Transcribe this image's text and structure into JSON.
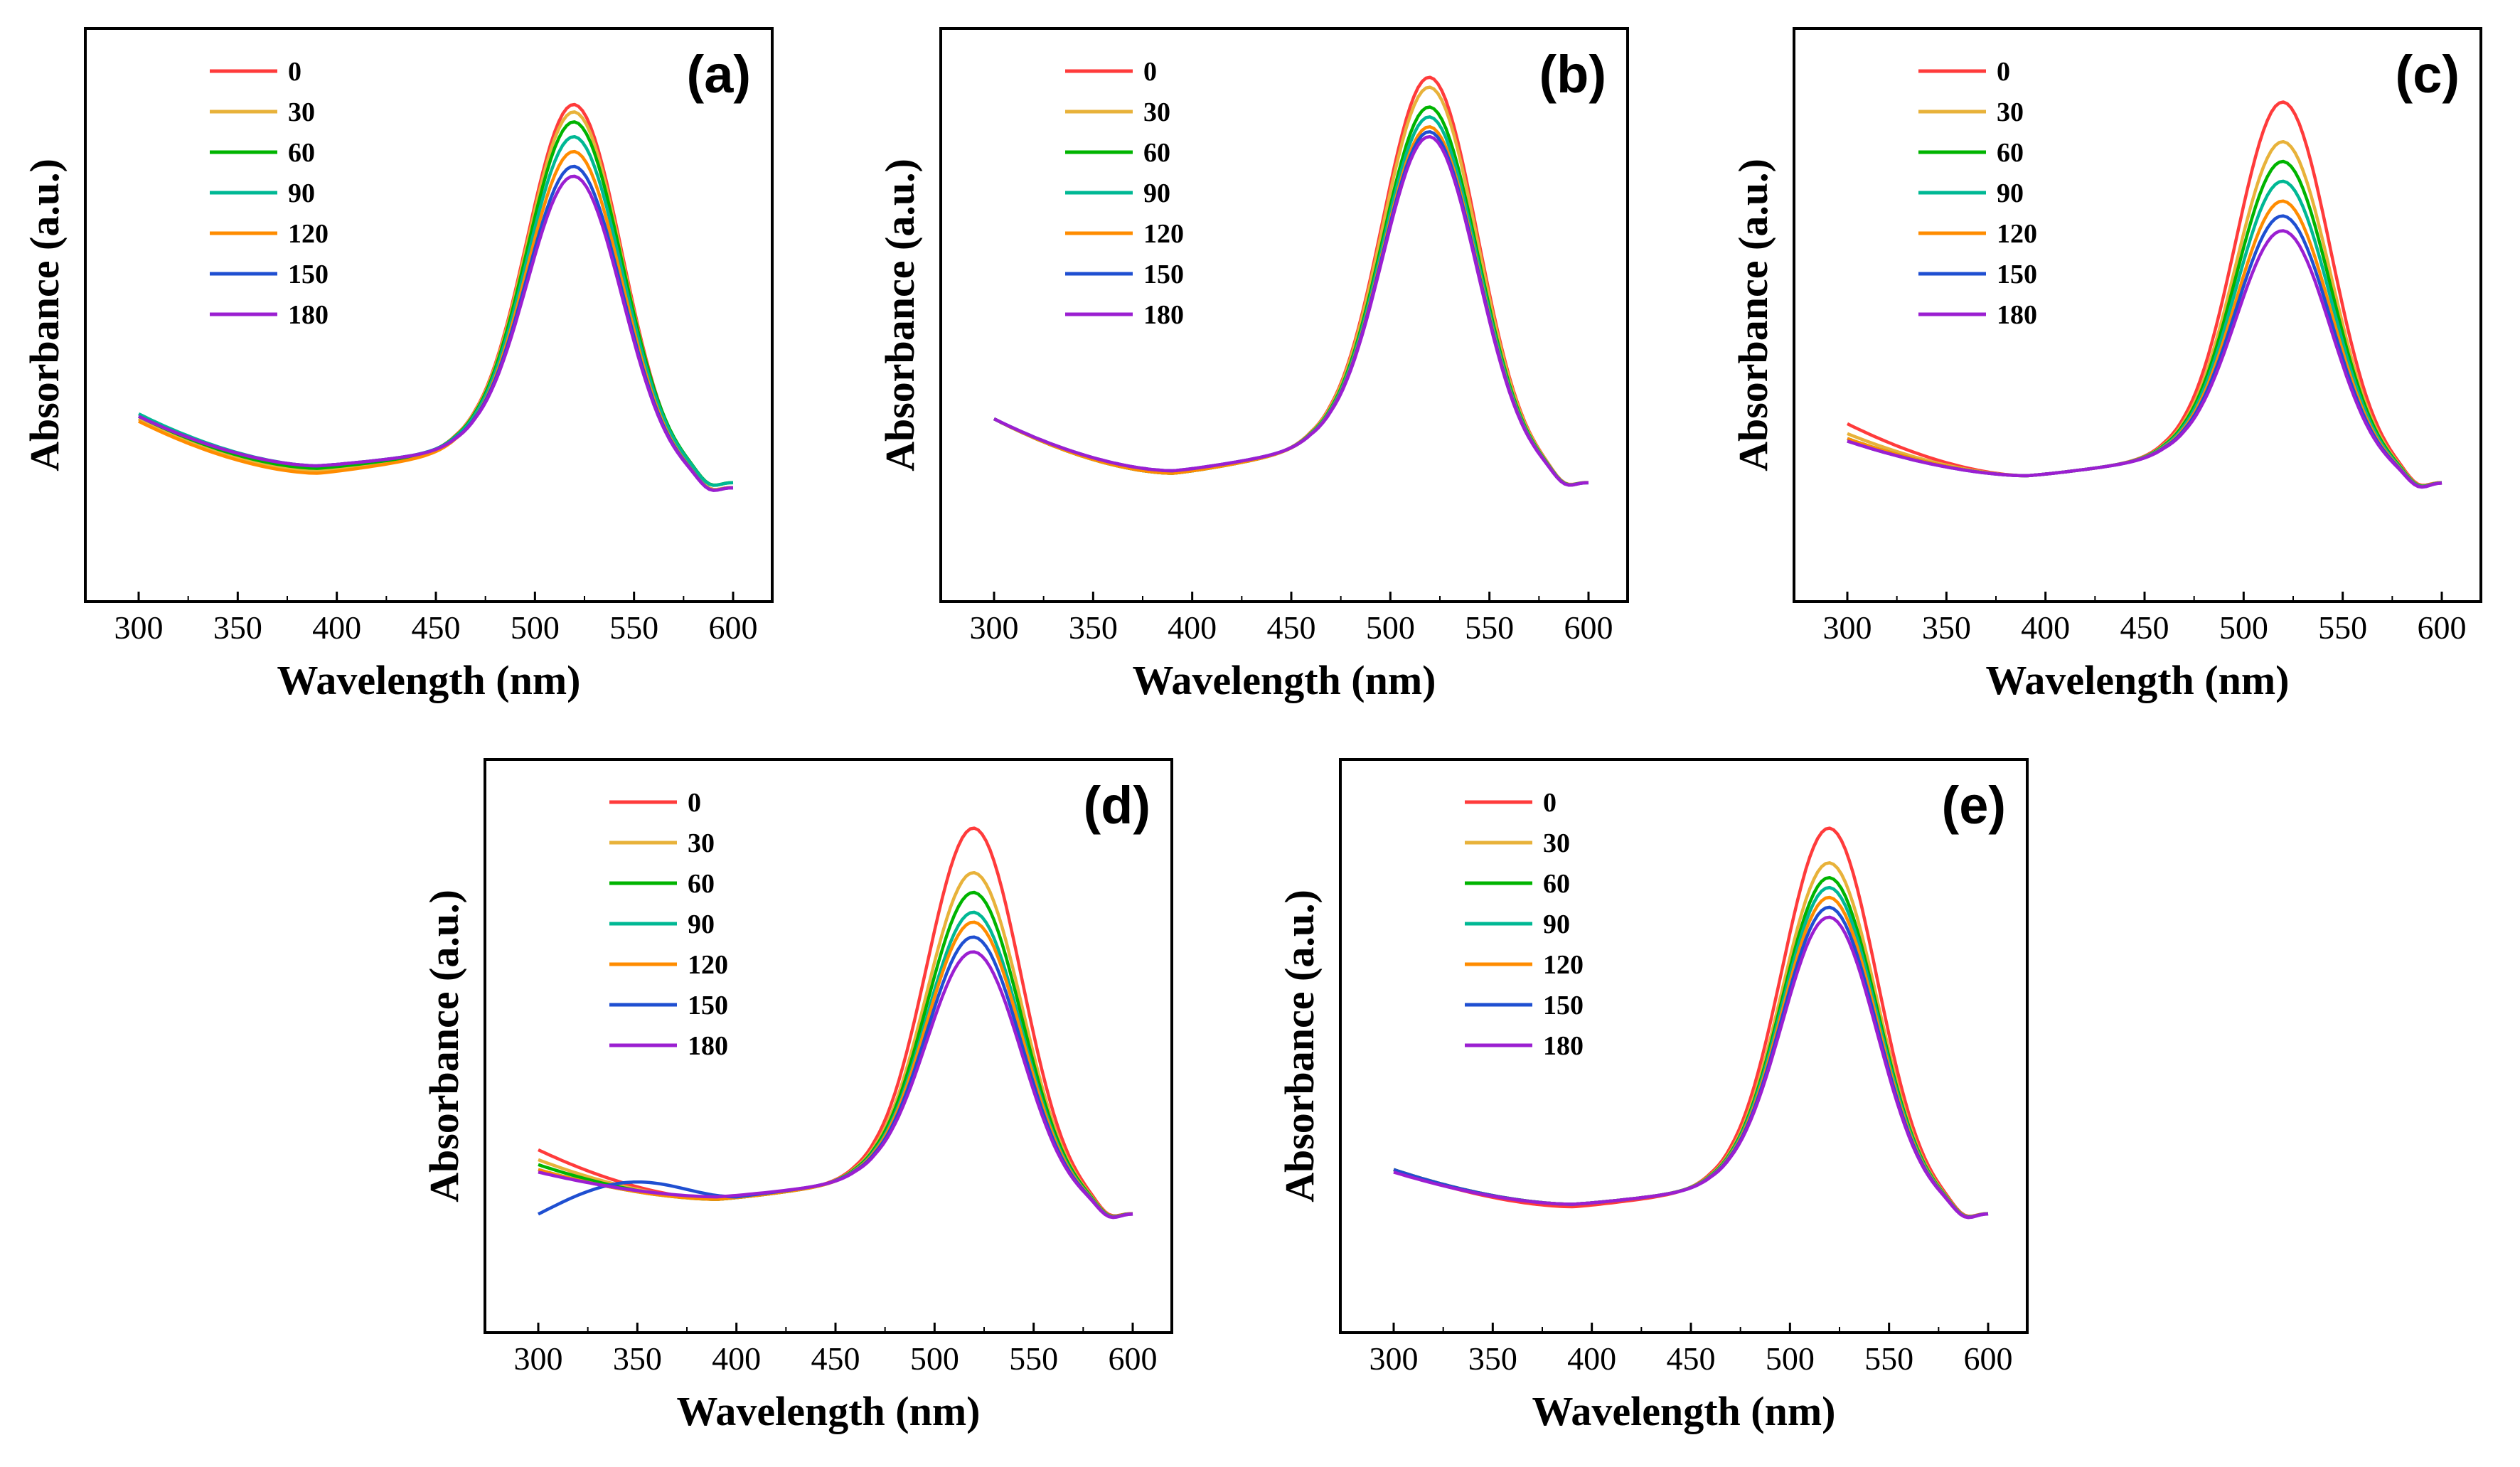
{
  "figure": {
    "legend_title": "",
    "colors": {
      "0": "#ff3b3b",
      "30": "#e8b23a",
      "60": "#00b400",
      "90": "#00b894",
      "120": "#ff8c00",
      "150": "#1f4fd1",
      "180": "#9b1fd1"
    }
  },
  "chart_data": [
    {
      "type": "line",
      "panel": "(a)",
      "xlabel": "Wavelength (nm)",
      "ylabel": "Absorbance (a.u.)",
      "xlim": [
        300,
        600
      ],
      "ylim": [
        0,
        1
      ],
      "xticks": [
        300,
        350,
        400,
        450,
        500,
        550,
        600
      ],
      "grid": false,
      "legend": "top-left",
      "peak_x": 520,
      "series": [
        {
          "name": "0",
          "start": 0.24,
          "min": 0.135,
          "min_x": 390,
          "shoulder": 0.175,
          "peak": 0.875,
          "end": 0.1
        },
        {
          "name": "30",
          "start": 0.24,
          "min": 0.135,
          "min_x": 390,
          "shoulder": 0.175,
          "peak": 0.86,
          "end": 0.1
        },
        {
          "name": "60",
          "start": 0.245,
          "min": 0.14,
          "min_x": 390,
          "shoulder": 0.175,
          "peak": 0.84,
          "end": 0.11
        },
        {
          "name": "90",
          "start": 0.25,
          "min": 0.145,
          "min_x": 390,
          "shoulder": 0.175,
          "peak": 0.81,
          "end": 0.11
        },
        {
          "name": "120",
          "start": 0.235,
          "min": 0.13,
          "min_x": 390,
          "shoulder": 0.172,
          "peak": 0.78,
          "end": 0.1
        },
        {
          "name": "150",
          "start": 0.245,
          "min": 0.145,
          "min_x": 390,
          "shoulder": 0.175,
          "peak": 0.75,
          "end": 0.1
        },
        {
          "name": "180",
          "start": 0.245,
          "min": 0.145,
          "min_x": 390,
          "shoulder": 0.175,
          "peak": 0.73,
          "end": 0.1
        }
      ]
    },
    {
      "type": "line",
      "panel": "(b)",
      "xlabel": "Wavelength (nm)",
      "ylabel": "Absorbance (a.u.)",
      "xlim": [
        300,
        600
      ],
      "ylim": [
        0,
        1
      ],
      "xticks": [
        300,
        350,
        400,
        450,
        500,
        550,
        600
      ],
      "grid": false,
      "legend": "top-left",
      "peak_x": 520,
      "series": [
        {
          "name": "0",
          "start": 0.24,
          "min": 0.13,
          "min_x": 390,
          "shoulder": 0.18,
          "peak": 0.93,
          "end": 0.11
        },
        {
          "name": "30",
          "start": 0.24,
          "min": 0.13,
          "min_x": 390,
          "shoulder": 0.18,
          "peak": 0.91,
          "end": 0.11
        },
        {
          "name": "60",
          "start": 0.24,
          "min": 0.13,
          "min_x": 390,
          "shoulder": 0.18,
          "peak": 0.87,
          "end": 0.11
        },
        {
          "name": "90",
          "start": 0.24,
          "min": 0.13,
          "min_x": 390,
          "shoulder": 0.18,
          "peak": 0.85,
          "end": 0.11
        },
        {
          "name": "120",
          "start": 0.24,
          "min": 0.13,
          "min_x": 390,
          "shoulder": 0.18,
          "peak": 0.83,
          "end": 0.11
        },
        {
          "name": "150",
          "start": 0.24,
          "min": 0.135,
          "min_x": 390,
          "shoulder": 0.18,
          "peak": 0.82,
          "end": 0.11
        },
        {
          "name": "180",
          "start": 0.24,
          "min": 0.135,
          "min_x": 390,
          "shoulder": 0.18,
          "peak": 0.81,
          "end": 0.11
        }
      ]
    },
    {
      "type": "line",
      "panel": "(c)",
      "xlabel": "Wavelength (nm)",
      "ylabel": "Absorbance (a.u.)",
      "xlim": [
        300,
        600
      ],
      "ylim": [
        0,
        1
      ],
      "xticks": [
        300,
        350,
        400,
        450,
        500,
        550,
        600
      ],
      "grid": false,
      "legend": "top-left",
      "peak_x": 520,
      "series": [
        {
          "name": "0",
          "start": 0.23,
          "min": 0.125,
          "min_x": 390,
          "shoulder": 0.16,
          "peak": 0.88,
          "end": 0.11
        },
        {
          "name": "30",
          "start": 0.21,
          "min": 0.125,
          "min_x": 390,
          "shoulder": 0.16,
          "peak": 0.8,
          "end": 0.11
        },
        {
          "name": "60",
          "start": 0.2,
          "min": 0.125,
          "min_x": 390,
          "shoulder": 0.16,
          "peak": 0.76,
          "end": 0.11
        },
        {
          "name": "90",
          "start": 0.2,
          "min": 0.125,
          "min_x": 390,
          "shoulder": 0.16,
          "peak": 0.72,
          "end": 0.11
        },
        {
          "name": "120",
          "start": 0.2,
          "min": 0.125,
          "min_x": 390,
          "shoulder": 0.16,
          "peak": 0.68,
          "end": 0.11
        },
        {
          "name": "150",
          "start": 0.195,
          "min": 0.125,
          "min_x": 390,
          "shoulder": 0.16,
          "peak": 0.65,
          "end": 0.11
        },
        {
          "name": "180",
          "start": 0.195,
          "min": 0.125,
          "min_x": 390,
          "shoulder": 0.16,
          "peak": 0.62,
          "end": 0.11
        }
      ]
    },
    {
      "type": "line",
      "panel": "(d)",
      "xlabel": "Wavelength (nm)",
      "ylabel": "Absorbance (a.u.)",
      "xlim": [
        300,
        600
      ],
      "ylim": [
        0,
        1
      ],
      "xticks": [
        300,
        350,
        400,
        450,
        500,
        550,
        600
      ],
      "grid": false,
      "legend": "top-left",
      "peak_x": 520,
      "series": [
        {
          "name": "0",
          "start": 0.24,
          "min": 0.14,
          "min_x": 390,
          "shoulder": 0.175,
          "peak": 0.89,
          "end": 0.11
        },
        {
          "name": "30",
          "start": 0.22,
          "min": 0.14,
          "min_x": 390,
          "shoulder": 0.175,
          "peak": 0.8,
          "end": 0.11
        },
        {
          "name": "60",
          "start": 0.21,
          "min": 0.14,
          "min_x": 390,
          "shoulder": 0.175,
          "peak": 0.76,
          "end": 0.11
        },
        {
          "name": "90",
          "start": 0.2,
          "min": 0.14,
          "min_x": 390,
          "shoulder": 0.175,
          "peak": 0.72,
          "end": 0.11
        },
        {
          "name": "120",
          "start": 0.2,
          "min": 0.14,
          "min_x": 390,
          "shoulder": 0.175,
          "peak": 0.7,
          "end": 0.11
        },
        {
          "name": "150",
          "start": 0.11,
          "min": 0.145,
          "min_x": 400,
          "shoulder": 0.175,
          "peak": 0.67,
          "end": 0.11,
          "rise_to": 0.175,
          "rise_x": 350
        },
        {
          "name": "180",
          "start": 0.195,
          "min": 0.145,
          "min_x": 390,
          "shoulder": 0.175,
          "peak": 0.64,
          "end": 0.11
        }
      ]
    },
    {
      "type": "line",
      "panel": "(e)",
      "xlabel": "Wavelength (nm)",
      "ylabel": "Absorbance (a.u.)",
      "xlim": [
        300,
        600
      ],
      "ylim": [
        0,
        1
      ],
      "xticks": [
        300,
        350,
        400,
        450,
        500,
        550,
        600
      ],
      "grid": false,
      "legend": "top-left",
      "peak_x": 520,
      "series": [
        {
          "name": "0",
          "start": 0.2,
          "min": 0.125,
          "min_x": 390,
          "shoulder": 0.16,
          "peak": 0.89,
          "end": 0.11
        },
        {
          "name": "30",
          "start": 0.2,
          "min": 0.13,
          "min_x": 390,
          "shoulder": 0.16,
          "peak": 0.82,
          "end": 0.11
        },
        {
          "name": "60",
          "start": 0.2,
          "min": 0.13,
          "min_x": 390,
          "shoulder": 0.16,
          "peak": 0.79,
          "end": 0.11
        },
        {
          "name": "90",
          "start": 0.2,
          "min": 0.13,
          "min_x": 390,
          "shoulder": 0.16,
          "peak": 0.77,
          "end": 0.11
        },
        {
          "name": "120",
          "start": 0.2,
          "min": 0.13,
          "min_x": 390,
          "shoulder": 0.16,
          "peak": 0.75,
          "end": 0.11
        },
        {
          "name": "150",
          "start": 0.2,
          "min": 0.13,
          "min_x": 390,
          "shoulder": 0.16,
          "peak": 0.73,
          "end": 0.11
        },
        {
          "name": "180",
          "start": 0.195,
          "min": 0.13,
          "min_x": 390,
          "shoulder": 0.16,
          "peak": 0.71,
          "end": 0.11
        }
      ]
    }
  ]
}
